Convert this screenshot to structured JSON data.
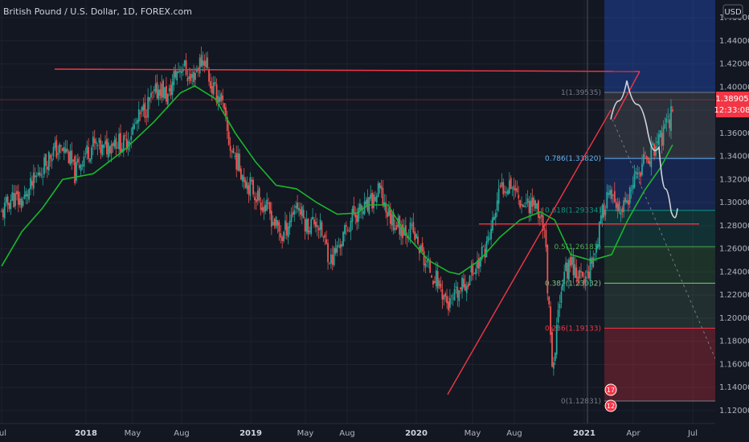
{
  "header": {
    "title": "British Pound / U.S. Dollar, 1D, FOREX.com",
    "currency": "USD"
  },
  "price_badges": {
    "last_price": "1.38905",
    "countdown": "12:33:08"
  },
  "event_badges": [
    "17",
    "12"
  ],
  "colors": {
    "background": "#131722",
    "up_candle": "#26a69a",
    "down_candle": "#ef5350",
    "moving_average": "#19b82d",
    "drawing_red": "#f23645",
    "projection_path": "#d1d4dc",
    "last_price": "#f23645"
  },
  "chart_data": {
    "type": "candlestick",
    "instrument": "GBP/USD",
    "timeframe": "1D",
    "x_ticks": [
      "Jul",
      "2018",
      "May",
      "Aug",
      "2019",
      "May",
      "Aug",
      "2020",
      "May",
      "Aug",
      "2021",
      "Apr",
      "Jul"
    ],
    "x_tick_bold": [
      "2018",
      "2019",
      "2020",
      "2021"
    ],
    "y_ticks": [
      "1.12000",
      "1.14000",
      "1.16000",
      "1.18000",
      "1.20000",
      "1.22000",
      "1.24000",
      "1.26000",
      "1.28000",
      "1.30000",
      "1.32000",
      "1.34000",
      "1.36000",
      "1.38000",
      "1.40000",
      "1.42000",
      "1.44000",
      "1.46000"
    ],
    "y_range": [
      1.113,
      1.468
    ],
    "close_path": [
      {
        "t": 0.0,
        "p": 1.29
      },
      {
        "t": 0.05,
        "p": 1.305
      },
      {
        "t": 0.1,
        "p": 1.3
      },
      {
        "t": 0.15,
        "p": 1.315
      },
      {
        "t": 0.2,
        "p": 1.33
      },
      {
        "t": 0.25,
        "p": 1.345
      },
      {
        "t": 0.32,
        "p": 1.345
      },
      {
        "t": 0.36,
        "p": 1.325
      },
      {
        "t": 0.4,
        "p": 1.34
      },
      {
        "t": 0.45,
        "p": 1.35
      },
      {
        "t": 0.5,
        "p": 1.345
      },
      {
        "t": 0.55,
        "p": 1.355
      },
      {
        "t": 0.6,
        "p": 1.35
      },
      {
        "t": 0.7,
        "p": 1.38
      },
      {
        "t": 0.78,
        "p": 1.4
      },
      {
        "t": 0.82,
        "p": 1.39
      },
      {
        "t": 0.85,
        "p": 1.41
      },
      {
        "t": 0.89,
        "p": 1.42
      },
      {
        "t": 0.93,
        "p": 1.405
      },
      {
        "t": 0.97,
        "p": 1.42
      },
      {
        "t": 1.0,
        "p": 1.425
      },
      {
        "t": 1.03,
        "p": 1.4
      },
      {
        "t": 1.08,
        "p": 1.39
      },
      {
        "t": 1.12,
        "p": 1.35
      },
      {
        "t": 1.2,
        "p": 1.32
      },
      {
        "t": 1.28,
        "p": 1.3
      },
      {
        "t": 1.32,
        "p": 1.29
      },
      {
        "t": 1.38,
        "p": 1.27
      },
      {
        "t": 1.45,
        "p": 1.3
      },
      {
        "t": 1.5,
        "p": 1.28
      },
      {
        "t": 1.55,
        "p": 1.285
      },
      {
        "t": 1.62,
        "p": 1.25
      },
      {
        "t": 1.68,
        "p": 1.27
      },
      {
        "t": 1.73,
        "p": 1.29
      },
      {
        "t": 1.8,
        "p": 1.295
      },
      {
        "t": 1.86,
        "p": 1.31
      },
      {
        "t": 1.9,
        "p": 1.29
      },
      {
        "t": 1.95,
        "p": 1.28
      },
      {
        "t": 2.02,
        "p": 1.275
      },
      {
        "t": 2.08,
        "p": 1.25
      },
      {
        "t": 2.15,
        "p": 1.23
      },
      {
        "t": 2.2,
        "p": 1.21
      },
      {
        "t": 2.28,
        "p": 1.23
      },
      {
        "t": 2.35,
        "p": 1.25
      },
      {
        "t": 2.4,
        "p": 1.27
      },
      {
        "t": 2.45,
        "p": 1.31
      },
      {
        "t": 2.5,
        "p": 1.32
      },
      {
        "t": 2.56,
        "p": 1.3
      },
      {
        "t": 2.62,
        "p": 1.3
      },
      {
        "t": 2.67,
        "p": 1.28
      },
      {
        "t": 2.71,
        "p": 1.145
      },
      {
        "t": 2.75,
        "p": 1.23
      },
      {
        "t": 2.8,
        "p": 1.25
      },
      {
        "t": 2.86,
        "p": 1.23
      },
      {
        "t": 2.92,
        "p": 1.26
      },
      {
        "t": 2.98,
        "p": 1.31
      },
      {
        "t": 3.03,
        "p": 1.29
      },
      {
        "t": 3.08,
        "p": 1.3
      },
      {
        "t": 3.14,
        "p": 1.33
      },
      {
        "t": 3.2,
        "p": 1.345
      },
      {
        "t": 3.26,
        "p": 1.36
      },
      {
        "t": 3.3,
        "p": 1.38
      }
    ],
    "moving_average": [
      {
        "t": 0.0,
        "p": 1.245
      },
      {
        "t": 0.1,
        "p": 1.275
      },
      {
        "t": 0.2,
        "p": 1.295
      },
      {
        "t": 0.3,
        "p": 1.32
      },
      {
        "t": 0.45,
        "p": 1.325
      },
      {
        "t": 0.6,
        "p": 1.345
      },
      {
        "t": 0.75,
        "p": 1.37
      },
      {
        "t": 0.88,
        "p": 1.395
      },
      {
        "t": 0.95,
        "p": 1.401
      },
      {
        "t": 1.05,
        "p": 1.39
      },
      {
        "t": 1.15,
        "p": 1.36
      },
      {
        "t": 1.25,
        "p": 1.335
      },
      {
        "t": 1.35,
        "p": 1.315
      },
      {
        "t": 1.45,
        "p": 1.312
      },
      {
        "t": 1.55,
        "p": 1.3
      },
      {
        "t": 1.65,
        "p": 1.29
      },
      {
        "t": 1.75,
        "p": 1.291
      },
      {
        "t": 1.8,
        "p": 1.298
      },
      {
        "t": 1.9,
        "p": 1.298
      },
      {
        "t": 2.0,
        "p": 1.27
      },
      {
        "t": 2.1,
        "p": 1.25
      },
      {
        "t": 2.2,
        "p": 1.24
      },
      {
        "t": 2.25,
        "p": 1.238
      },
      {
        "t": 2.35,
        "p": 1.25
      },
      {
        "t": 2.45,
        "p": 1.27
      },
      {
        "t": 2.55,
        "p": 1.285
      },
      {
        "t": 2.65,
        "p": 1.292
      },
      {
        "t": 2.72,
        "p": 1.285
      },
      {
        "t": 2.8,
        "p": 1.255
      },
      {
        "t": 2.9,
        "p": 1.25
      },
      {
        "t": 3.0,
        "p": 1.255
      },
      {
        "t": 3.08,
        "p": 1.285
      },
      {
        "t": 3.16,
        "p": 1.31
      },
      {
        "t": 3.24,
        "p": 1.33
      },
      {
        "t": 3.3,
        "p": 1.35
      }
    ],
    "fibonacci": [
      {
        "level": "0",
        "price": 1.12831,
        "label": "0(1.12831)",
        "color": "#787b86"
      },
      {
        "level": "0.236",
        "price": 1.19133,
        "label": "0.236(1.19133)",
        "color": "#f23645"
      },
      {
        "level": "0.382",
        "price": 1.23032,
        "label": "0.382(1.23032)",
        "color": "#81c784"
      },
      {
        "level": "0.5",
        "price": 1.26183,
        "label": "0.5(1.26183)",
        "color": "#4caf50"
      },
      {
        "level": "0.618",
        "price": 1.29334,
        "label": "0.618(1.29334)",
        "color": "#089981"
      },
      {
        "level": "0.786",
        "price": 1.3382,
        "label": "0.786(1.33820)",
        "color": "#64b5f6"
      },
      {
        "level": "1",
        "price": 1.39535,
        "label": "1(1.39535)",
        "color": "#787b86"
      }
    ],
    "resistance_level": 1.4135,
    "support_level": 1.2815,
    "last_price": 1.38905,
    "projection_path": [
      1.372,
      1.388,
      1.4055,
      1.385,
      1.365,
      1.345,
      1.348,
      1.312,
      1.2925,
      1.287,
      1.295
    ]
  }
}
